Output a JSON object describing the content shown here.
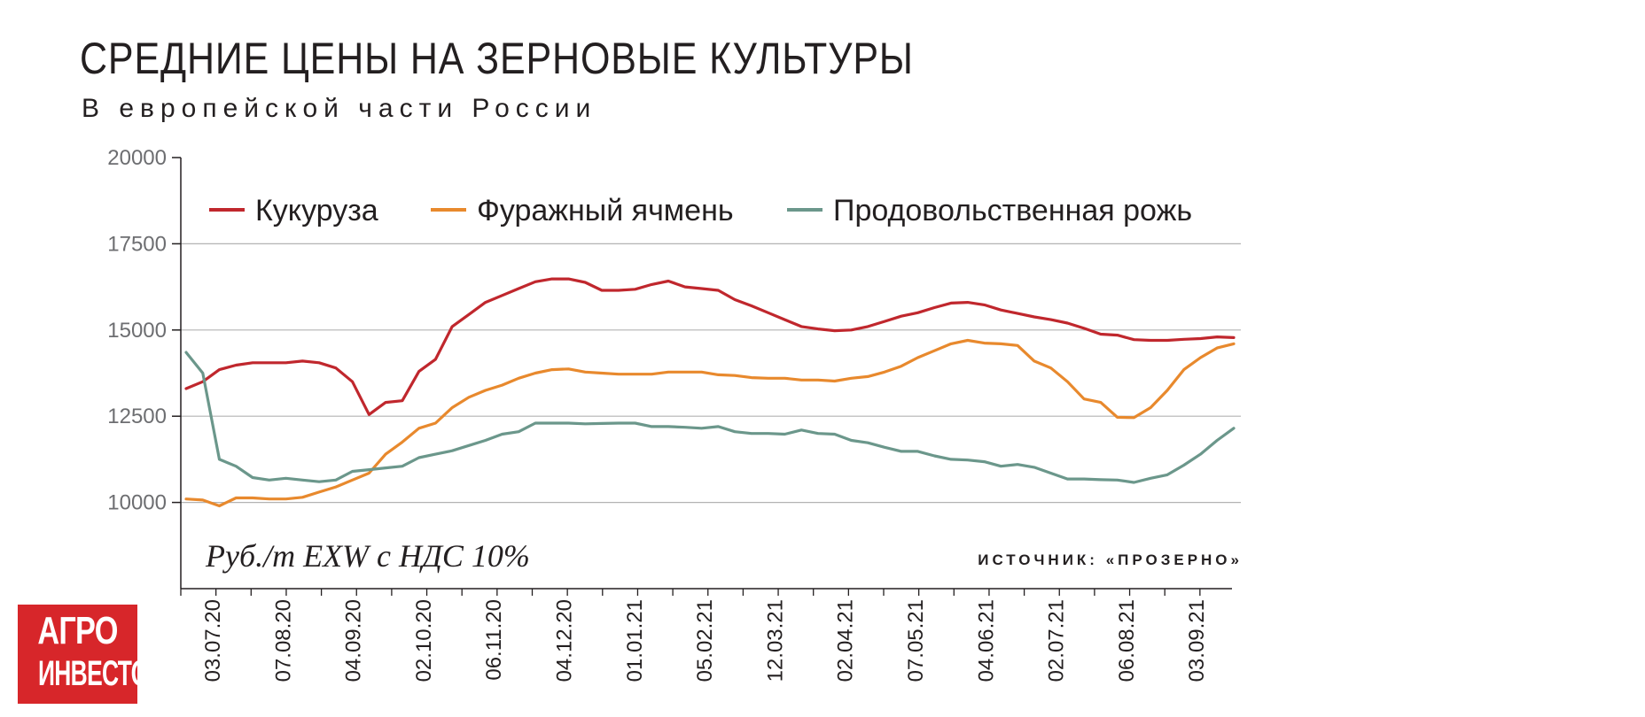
{
  "title": "СРЕДНИЕ ЦЕНЫ НА ЗЕРНОВЫЕ КУЛЬТУРЫ",
  "subtitle": "В европейской части России",
  "unit_label": "Руб./т EXW с НДС 10%",
  "source_label": "ИСТОЧНИК: «ПРОЗЕРНО»",
  "logo": {
    "line1": "АГРО",
    "line2": "ИНВЕСТОР",
    "color": "#d7262a"
  },
  "chart_data": {
    "type": "line",
    "title": "СРЕДНИЕ ЦЕНЫ НА ЗЕРНОВЫЕ КУЛЬТУРЫ",
    "subtitle": "В европейской части России",
    "ylabel": "Руб./т EXW с НДС 10%",
    "xlabel": "",
    "ylim": [
      7500,
      20000
    ],
    "yticks": [
      10000,
      12500,
      15000,
      17500,
      20000
    ],
    "ytick_labels": [
      "10000",
      "12500",
      "15000",
      "17500",
      "20000"
    ],
    "grid": "horizontal",
    "legend": "top",
    "x_tick_labels": [
      "03.07.20",
      "07.08.20",
      "04.09.20",
      "02.10.20",
      "06.11.20",
      "04.12.20",
      "01.01.21",
      "05.02.21",
      "12.03.21",
      "02.04.21",
      "07.05.21",
      "04.06.21",
      "02.07.21",
      "06.08.21",
      "03.09.21"
    ],
    "series": [
      {
        "name": "Кукуруза",
        "color": "#c0272d",
        "values": [
          13300,
          13500,
          13850,
          13980,
          14050,
          14050,
          14050,
          14100,
          14050,
          13900,
          13500,
          12550,
          12900,
          12950,
          13800,
          14150,
          15100,
          15450,
          15800,
          16000,
          16200,
          16400,
          16480,
          16480,
          16380,
          16150,
          16150,
          16180,
          16320,
          16420,
          16250,
          16200,
          16150,
          15880,
          15700,
          15500,
          15300,
          15100,
          15030,
          14980,
          15000,
          15100,
          15250,
          15400,
          15500,
          15650,
          15780,
          15800,
          15730,
          15580,
          15480,
          15380,
          15300,
          15200,
          15050,
          14880,
          14850,
          14720,
          14700,
          14700,
          14730,
          14750,
          14800,
          14780
        ]
      },
      {
        "name": "Фуражный ячмень",
        "color": "#e8892d",
        "values": [
          10100,
          10070,
          9900,
          10130,
          10130,
          10100,
          10100,
          10150,
          10300,
          10450,
          10650,
          10850,
          11400,
          11750,
          12150,
          12300,
          12750,
          13050,
          13250,
          13400,
          13600,
          13750,
          13850,
          13870,
          13780,
          13750,
          13720,
          13720,
          13720,
          13780,
          13780,
          13780,
          13700,
          13680,
          13620,
          13600,
          13600,
          13550,
          13550,
          13520,
          13600,
          13650,
          13780,
          13950,
          14200,
          14400,
          14600,
          14700,
          14620,
          14600,
          14550,
          14100,
          13900,
          13500,
          13000,
          12900,
          12470,
          12460,
          12750,
          13250,
          13850,
          14200,
          14480,
          14600
        ]
      },
      {
        "name": "Продовольственная рожь",
        "color": "#6b978b",
        "values": [
          14350,
          13750,
          11250,
          11050,
          10720,
          10650,
          10700,
          10650,
          10600,
          10650,
          10900,
          10950,
          11000,
          11050,
          11300,
          11400,
          11500,
          11650,
          11800,
          11980,
          12050,
          12300,
          12300,
          12300,
          12280,
          12290,
          12300,
          12300,
          12200,
          12200,
          12180,
          12150,
          12200,
          12050,
          12000,
          12000,
          11980,
          12100,
          12000,
          11980,
          11800,
          11730,
          11600,
          11480,
          11480,
          11350,
          11250,
          11230,
          11180,
          11050,
          11100,
          11020,
          10850,
          10680,
          10680,
          10660,
          10650,
          10580,
          10700,
          10800,
          11080,
          11400,
          11800,
          12150
        ]
      }
    ]
  }
}
